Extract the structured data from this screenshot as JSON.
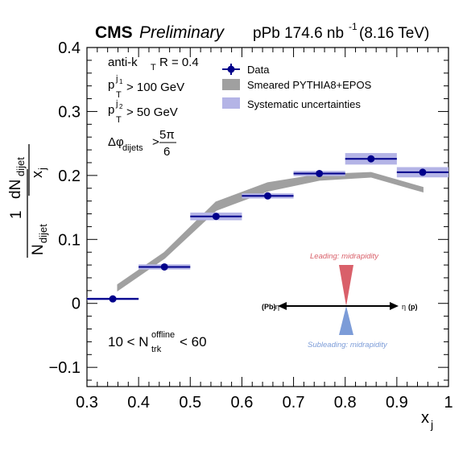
{
  "header": {
    "experiment": "CMS",
    "status": "Preliminary",
    "lumi": "pPb 174.6 nb",
    "lumi_exp": "-1",
    "energy": "(8.16 TeV)"
  },
  "cuts": {
    "algo_a": "anti-k",
    "algo_sub": "T",
    "algo_b": "R = 0.4",
    "pt1_sub": "T",
    "pt1_sup": "j",
    "pt1_sup2": "1",
    "pt1_rest": "> 100 GeV",
    "pt2_sub": "T",
    "pt2_sup": "j",
    "pt2_sup2": "2",
    "pt2_rest": "> 50 GeV",
    "dphi_sym": "Δφ",
    "dphi_sub": "dijets",
    "dphi_gt": ">",
    "dphi_num": "5π",
    "dphi_den": "6",
    "mult_a": "10 < N",
    "mult_sup": "offline",
    "mult_sub": "trk",
    "mult_b": "< 60"
  },
  "inset": {
    "leading": "Leading: midrapidity",
    "subleading": "Subleading: midrapidity",
    "left_bold": "(Pb)",
    "left_eta": "-η",
    "right_eta": "η",
    "right_bold": "(p)",
    "leading_color": "#d9606a",
    "subleading_color": "#7c9cd8"
  },
  "chart_data": {
    "type": "scatter",
    "xlabel": "x",
    "xlabel_sub": "j",
    "ylabel": {
      "one": "1",
      "n": "N",
      "n_sub": "dijet",
      "dn": "dN",
      "dn_sub": "dijet",
      "x": "x",
      "x_sub": "j"
    },
    "xlim": [
      0.3,
      1.0
    ],
    "ylim": [
      -0.13,
      0.4
    ],
    "xticks": [
      0.3,
      0.4,
      0.5,
      0.6,
      0.7,
      0.8,
      0.9,
      1.0
    ],
    "xtick_labels": [
      "0.3",
      "0.4",
      "0.5",
      "0.6",
      "0.7",
      "0.8",
      "0.9",
      "1"
    ],
    "yticks": [
      -0.1,
      0,
      0.1,
      0.2,
      0.3,
      0.4
    ],
    "ytick_labels": [
      "−0.1",
      "0",
      "0.1",
      "0.2",
      "0.3",
      "0.4"
    ],
    "grid": false,
    "legend_position": "top-center",
    "legend": [
      "Data",
      "Smeared PYTHIA8+EPOS",
      "Systematic uncertainties"
    ],
    "colors": {
      "data": "#00008b",
      "model": "#a0a0a0",
      "syst": "#b4b4e6"
    },
    "series": [
      {
        "name": "Data",
        "x": [
          0.35,
          0.45,
          0.55,
          0.65,
          0.75,
          0.85,
          0.95
        ],
        "xerr": [
          0.05,
          0.05,
          0.05,
          0.05,
          0.05,
          0.05,
          0.05
        ],
        "y": [
          0.007,
          0.057,
          0.136,
          0.168,
          0.203,
          0.226,
          0.205
        ],
        "syst": [
          0.002,
          0.004,
          0.006,
          0.004,
          0.004,
          0.009,
          0.008
        ]
      },
      {
        "name": "Smeared PYTHIA8+EPOS",
        "x": [
          0.36,
          0.45,
          0.55,
          0.65,
          0.75,
          0.85,
          0.95
        ],
        "y": [
          0.025,
          0.075,
          0.152,
          0.182,
          0.197,
          0.201,
          0.178
        ],
        "band": [
          0.004,
          0.004,
          0.006,
          0.006,
          0.004,
          0.003,
          0.003
        ]
      }
    ]
  }
}
